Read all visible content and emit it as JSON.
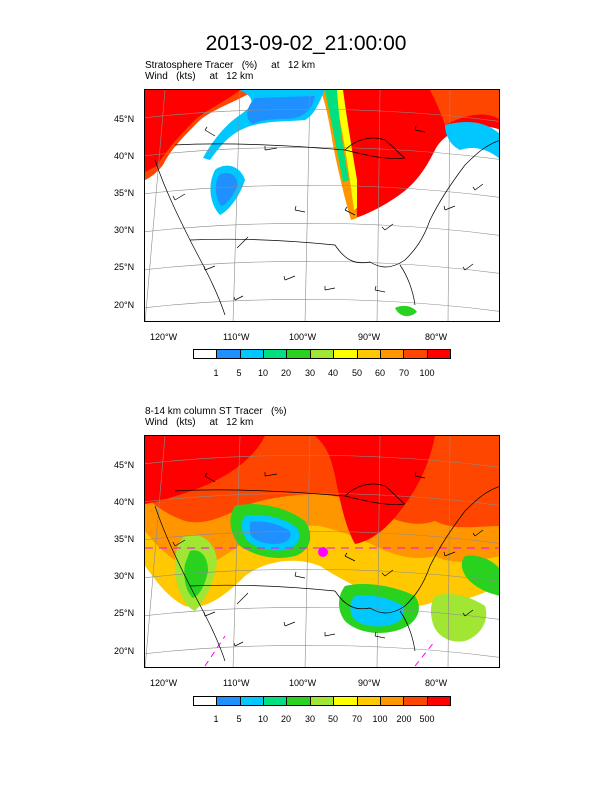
{
  "title": "2013-09-02_21:00:00",
  "panels": [
    {
      "subtitle1": "Stratosphere Tracer   (%)     at   12 km",
      "subtitle2": "Wind   (kts)     at   12 km",
      "lat_labels": [
        "45°N",
        "40°N",
        "35°N",
        "30°N",
        "25°N",
        "20°N"
      ],
      "lon_labels": [
        "120°W",
        "110°W",
        "100°W",
        "90°W",
        "80°W"
      ],
      "colorbar_labels": [
        "1",
        "5",
        "10",
        "20",
        "30",
        "40",
        "50",
        "60",
        "70",
        "100"
      ]
    },
    {
      "subtitle1": "8-14 km column ST Tracer   (%)",
      "subtitle2": "Wind   (kts)     at   12 km",
      "lat_labels": [
        "45°N",
        "40°N",
        "35°N",
        "30°N",
        "25°N",
        "20°N"
      ],
      "lon_labels": [
        "120°W",
        "110°W",
        "100°W",
        "90°W",
        "80°W"
      ],
      "colorbar_labels": [
        "1",
        "5",
        "10",
        "20",
        "30",
        "50",
        "70",
        "100",
        "200",
        "500"
      ]
    }
  ],
  "colorbar_colors": [
    "#ffffff",
    "#1e90ff",
    "#00c8ff",
    "#00e080",
    "#28d21e",
    "#a0e632",
    "#ffff00",
    "#ffc800",
    "#ff9600",
    "#ff4600",
    "#ff0000"
  ]
}
